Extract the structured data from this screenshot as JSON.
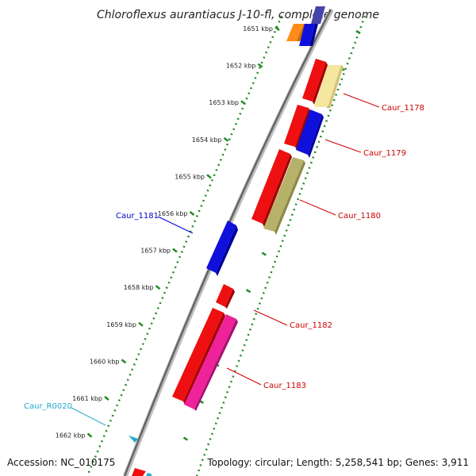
{
  "title": "Chloroflexus aurantiacus J-10-fl, complete genome",
  "footer": {
    "accession": "Accession: NC_010175",
    "summary": "Topology: circular; Length: 5,258,541 bp; Genes: 3,911"
  },
  "colors": {
    "backbone": "#7a7a7a",
    "tick": "#228b22",
    "label_forward": "#cc0000",
    "label_reverse": "#0000cc",
    "label_rna": "#22aacc"
  },
  "scale": {
    "unit": "kbp",
    "ticks": [
      "1651 kbp",
      "1652 kbp",
      "1653 kbp",
      "1654 kbp",
      "1655 kbp",
      "1656 kbp",
      "1657 kbp",
      "1658 kbp",
      "1659 kbp",
      "1660 kbp",
      "1661 kbp",
      "1662 kbp"
    ]
  },
  "genes": [
    {
      "label": "Caur_1178",
      "strand": "forward",
      "color": "#f5e6a0"
    },
    {
      "label": "Caur_1179",
      "strand": "forward",
      "color": "#1010dd"
    },
    {
      "label": "Caur_1180",
      "strand": "forward",
      "color": "#b7b26a"
    },
    {
      "label": "Caur_1181",
      "strand": "reverse",
      "color": "#1010dd"
    },
    {
      "label": "Caur_1182",
      "strand": "forward",
      "color": "#ee1010"
    },
    {
      "label": "Caur_1183",
      "strand": "forward",
      "color": "#ee2299"
    },
    {
      "label": "Caur_R0020",
      "strand": "reverse",
      "color": "#22aacc"
    }
  ]
}
